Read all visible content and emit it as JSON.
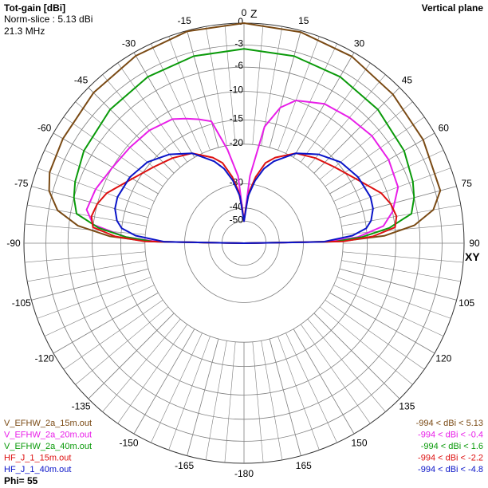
{
  "header": {
    "title": "Tot-gain [dBi]",
    "norm_slice": "Norm-slice : 5.13 dBi",
    "frequency": "21.3 MHz",
    "plane": "Vertical plane"
  },
  "axis_letters": {
    "zenith": "Z",
    "horizon": "XY"
  },
  "footer": {
    "phi": "Phi= 55"
  },
  "colors": {
    "V_EFHW_2a_15m": "#7a4a14",
    "V_EFHW_2a_20m": "#e81ee8",
    "V_EFHW_2a_40m": "#0a9a0a",
    "HF_J_1_15m": "#dd1111",
    "HF_J_1_40m": "#0a14c8",
    "grid": "#7f7f7f"
  },
  "chart_data": {
    "type": "polar-elevation",
    "title": "Tot-gain [dBi]",
    "subtitle": "Vertical plane",
    "angle_ticks": [
      0,
      15,
      30,
      45,
      60,
      75,
      90,
      105,
      120,
      135,
      150,
      165,
      180,
      -165,
      -150,
      -135,
      -120,
      -105,
      -90,
      -75,
      -60,
      -45,
      -30,
      -15
    ],
    "angle_tick_labels": [
      "0",
      "15",
      "30",
      "45",
      "60",
      "75",
      "90",
      "105",
      "120",
      "135",
      "150",
      "165",
      "-180",
      "-165",
      "-150",
      "-135",
      "-120",
      "-105",
      "-90",
      "-75",
      "-60",
      "-45",
      "-30",
      "-15"
    ],
    "ring_labels": [
      "0",
      "-3",
      "-6",
      "-10",
      "-15",
      "-20",
      "-30",
      "-40",
      "-50"
    ],
    "ring_values_db": [
      0,
      -3,
      -6,
      -10,
      -15,
      -20,
      -30,
      -40,
      -50
    ],
    "ring_radius_fraction": [
      1.0,
      0.9,
      0.8,
      0.69,
      0.56,
      0.45,
      0.27,
      0.16,
      0.1
    ],
    "angle_unit": "degrees from zenith",
    "series": [
      {
        "name": "V_EFHW_2a_15m.out",
        "color_key": "V_EFHW_2a_15m",
        "range_label": "-994 < dBi < 5.13",
        "angles": [
          -89,
          -87,
          -84,
          -80,
          -75,
          -70,
          -60,
          -45,
          -30,
          -15,
          0,
          15,
          30,
          45,
          60,
          75,
          80,
          84,
          87,
          89
        ],
        "gain_db": [
          -21,
          -13,
          -7.5,
          -4.2,
          -2.5,
          -1.8,
          -1.5,
          -1.0,
          -0.5,
          -0.1,
          0,
          -0.2,
          -0.6,
          -1.3,
          -1.8,
          -2.3,
          -3.8,
          -6.8,
          -12,
          -21
        ]
      },
      {
        "name": "V_EFHW_2a_20m.out",
        "color_key": "V_EFHW_2a_20m",
        "range_label": "-994 < dBi < -0.4",
        "angles": [
          -89,
          -87,
          -83,
          -78,
          -70,
          -60,
          -50,
          -40,
          -30,
          -25,
          -20,
          -15,
          -10,
          -5,
          0,
          5,
          10,
          15,
          20,
          30,
          40,
          50,
          60,
          70,
          78,
          83,
          87,
          89
        ],
        "gain_db": [
          -23,
          -16,
          -10,
          -8.5,
          -9,
          -10,
          -10.5,
          -10.8,
          -11.5,
          -12.5,
          -13.5,
          -14.5,
          -21,
          -28,
          -50,
          -28,
          -16,
          -12,
          -10,
          -8.5,
          -8,
          -7.5,
          -7.5,
          -8,
          -10,
          -12,
          -17,
          -24
        ]
      },
      {
        "name": "V_EFHW_2a_40m.out",
        "color_key": "V_EFHW_2a_40m",
        "range_label": "-994 < dBi < 1.6",
        "angles": [
          -89,
          -87,
          -84,
          -80,
          -75,
          -70,
          -60,
          -45,
          -30,
          -15,
          0,
          15,
          30,
          45,
          60,
          70,
          75,
          80,
          84,
          87,
          89
        ],
        "gain_db": [
          -22,
          -16,
          -11,
          -7,
          -6,
          -5.5,
          -4.8,
          -4.2,
          -3.8,
          -3.6,
          -3.5,
          -3.6,
          -3.8,
          -4.2,
          -4.8,
          -5.5,
          -6,
          -7,
          -11,
          -16,
          -22
        ]
      },
      {
        "name": "HF_J_1_15m.out",
        "color_key": "HF_J_1_15m",
        "range_label": "-994 < dBi < -2.2",
        "angles": [
          -89,
          -87,
          -84,
          -80,
          -75,
          -70,
          -60,
          -50,
          -40,
          -30,
          -20,
          -15,
          -10,
          -6,
          -3,
          0,
          3,
          6,
          10,
          15,
          20,
          30,
          40,
          50,
          60,
          70,
          75,
          80,
          84,
          87,
          89
        ],
        "gain_db": [
          -20,
          -14,
          -10,
          -9.5,
          -10,
          -11,
          -14,
          -16,
          -17.5,
          -19,
          -22,
          -24,
          -28,
          -33,
          -40,
          -50,
          -40,
          -33,
          -28,
          -24,
          -22,
          -19,
          -17.5,
          -16,
          -14,
          -11,
          -10,
          -9.5,
          -10,
          -14,
          -20
        ]
      },
      {
        "name": "HF_J_1_40m.out",
        "color_key": "HF_J_1_40m",
        "range_label": "-994 < dBi < -4.8",
        "angles": [
          -89,
          -86,
          -83,
          -80,
          -75,
          -70,
          -60,
          -50,
          -40,
          -30,
          -20,
          -15,
          -10,
          -5,
          0,
          5,
          10,
          15,
          20,
          30,
          40,
          50,
          60,
          70,
          75,
          80,
          83,
          86,
          89
        ],
        "gain_db": [
          -25,
          -18,
          -15,
          -14,
          -13.2,
          -13,
          -13.5,
          -14.5,
          -16.5,
          -19,
          -23,
          -25.5,
          -29,
          -35,
          -50,
          -35,
          -29,
          -25.5,
          -23,
          -19,
          -16.5,
          -14.5,
          -13.5,
          -13,
          -13.2,
          -14,
          -15,
          -18,
          -25
        ]
      }
    ]
  }
}
